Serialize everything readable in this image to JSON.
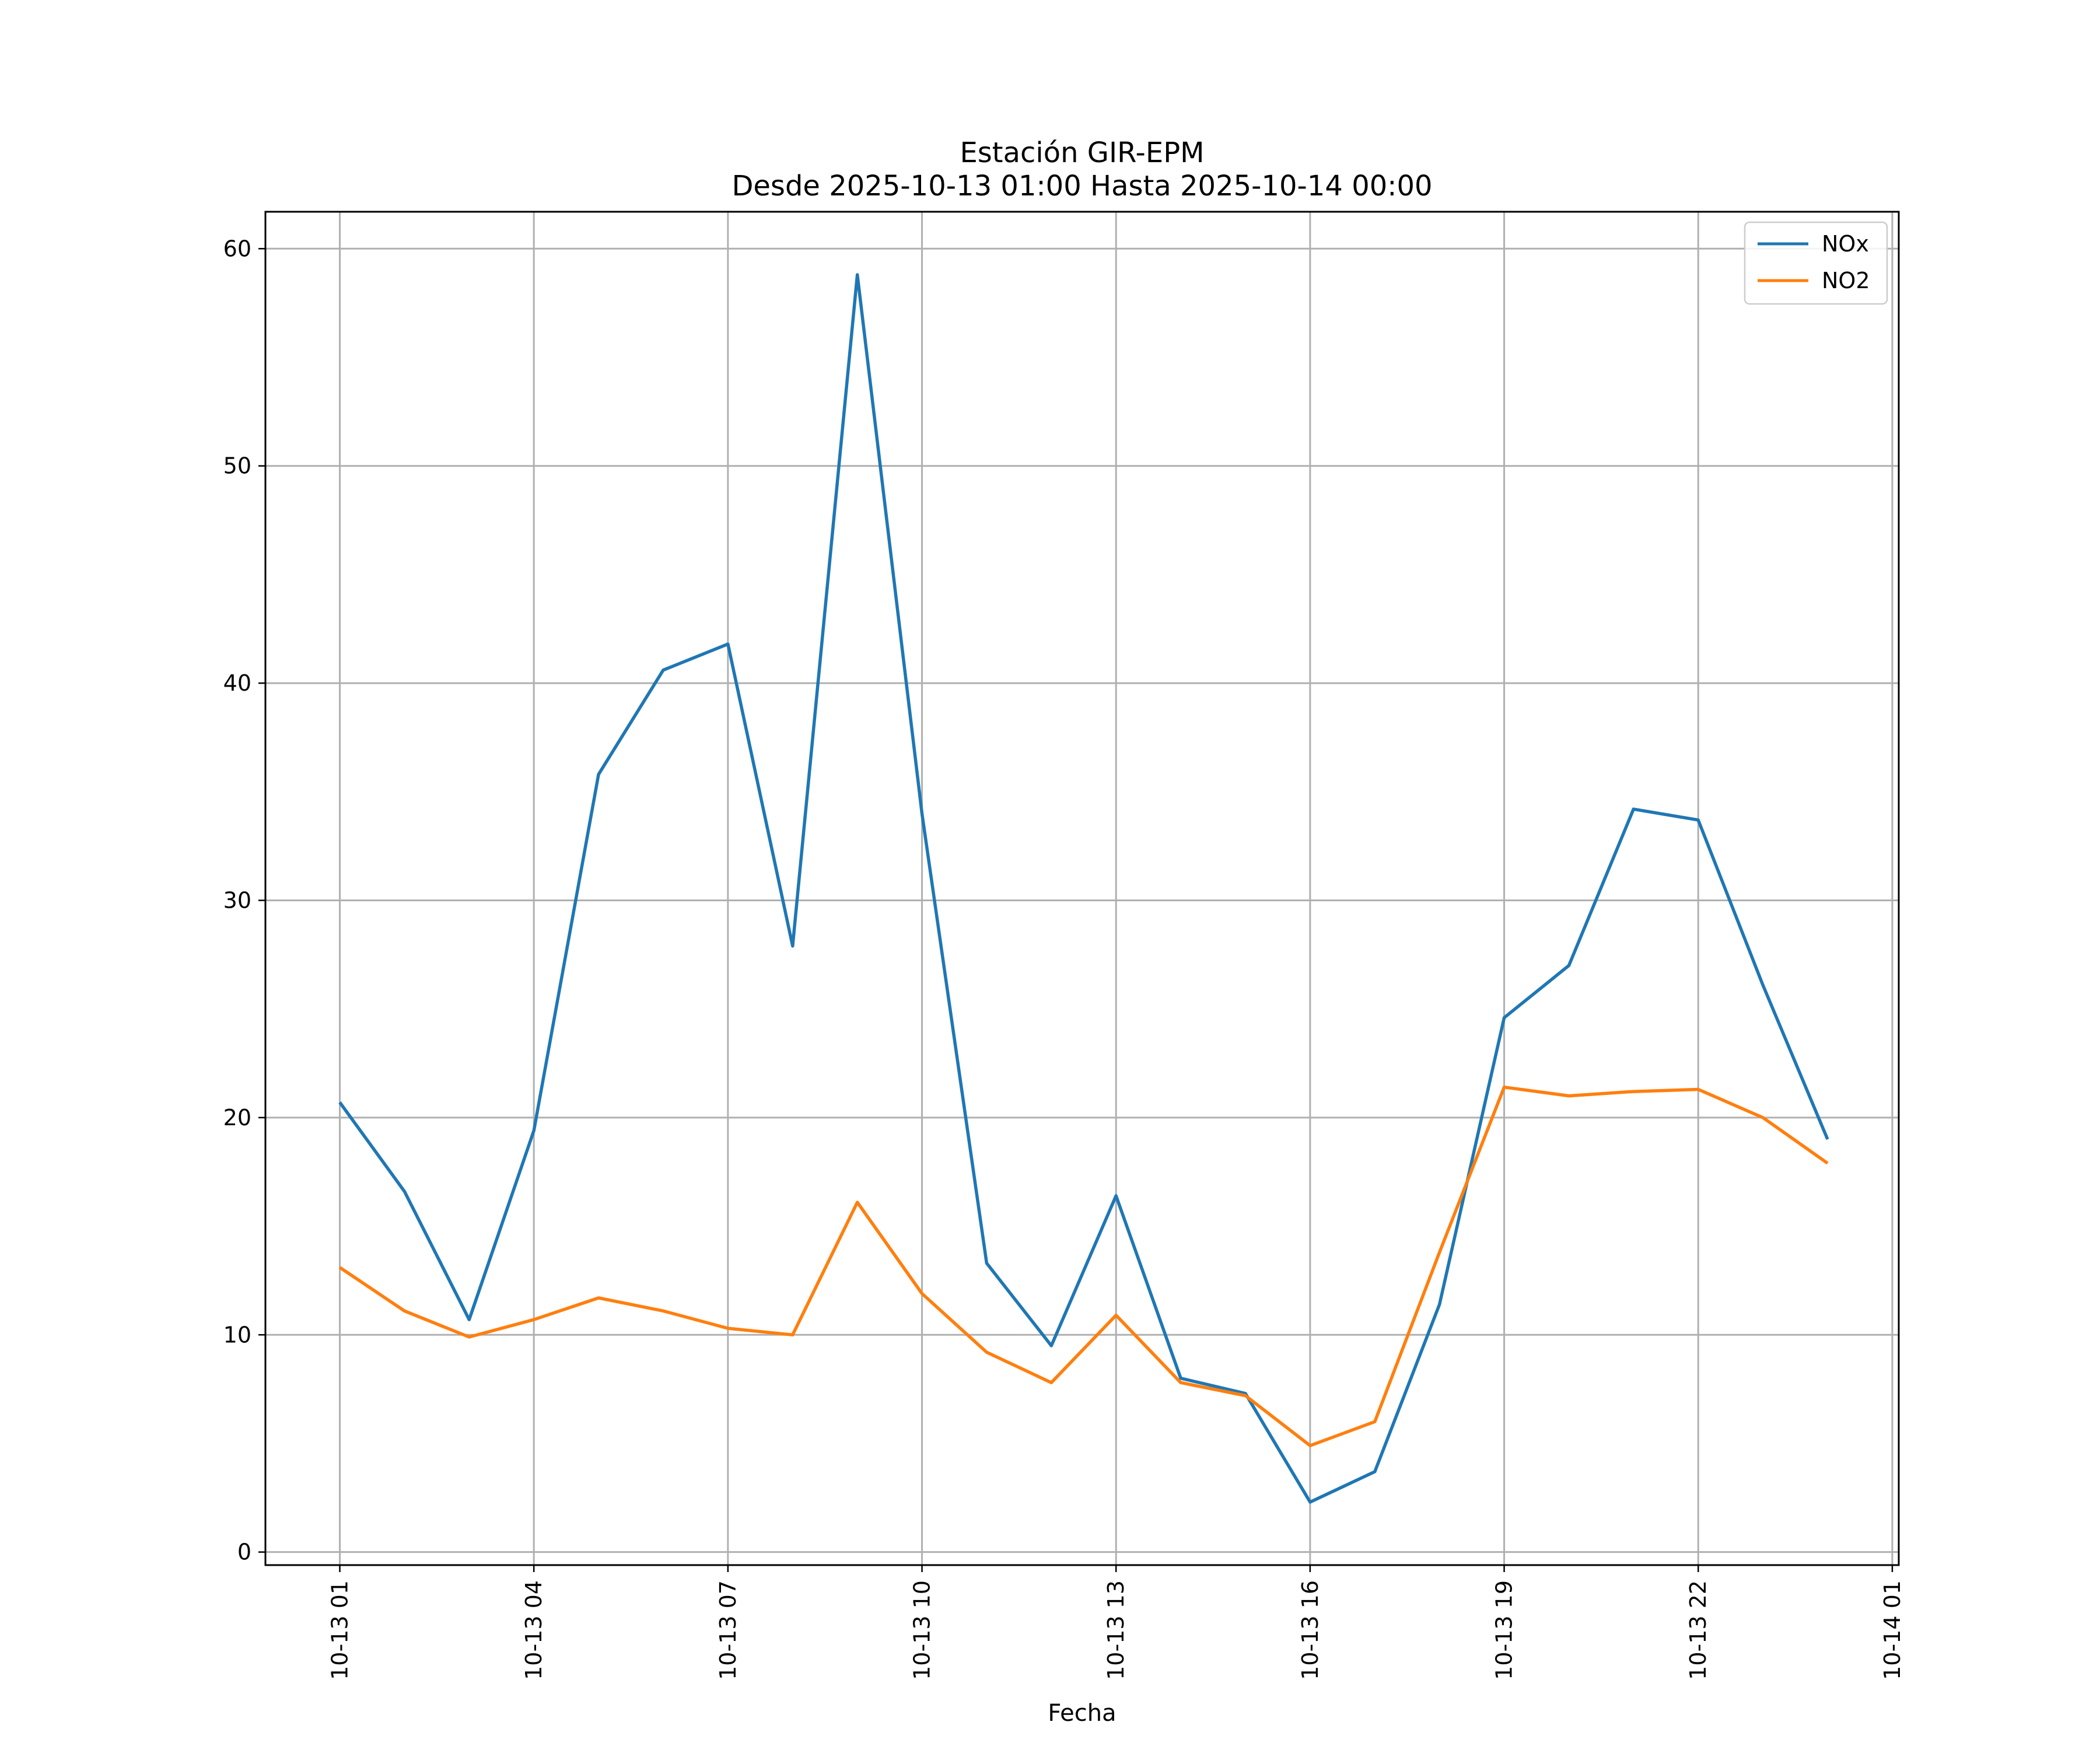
{
  "chart_data": {
    "type": "line",
    "title": [
      "Estación GIR-EPM",
      "Desde 2025-10-13 01:00 Hasta 2025-10-14 00:00"
    ],
    "xlabel": "Fecha",
    "ylabel": "",
    "x_hours": [
      1,
      2,
      3,
      4,
      5,
      6,
      7,
      8,
      9,
      10,
      11,
      12,
      13,
      14,
      15,
      16,
      17,
      18,
      19,
      20,
      21,
      22,
      23,
      24
    ],
    "series": [
      {
        "name": "NOx",
        "color": "#1f77b4",
        "values": [
          20.7,
          16.6,
          10.7,
          19.4,
          35.8,
          40.6,
          41.8,
          27.9,
          58.8,
          34.0,
          13.3,
          9.5,
          16.4,
          8.0,
          7.3,
          2.3,
          3.7,
          11.4,
          24.6,
          27.0,
          34.2,
          33.7,
          26.1,
          19.0
        ]
      },
      {
        "name": "NO2",
        "color": "#ff7f0e",
        "values": [
          13.1,
          11.1,
          9.9,
          10.7,
          11.7,
          11.1,
          10.3,
          10.0,
          16.1,
          11.9,
          9.2,
          7.8,
          10.9,
          7.8,
          7.2,
          4.9,
          6.0,
          13.8,
          21.4,
          21.0,
          21.2,
          21.3,
          20.0,
          17.9
        ]
      }
    ],
    "xticks": [
      {
        "hour": 1,
        "label": "10-13 01"
      },
      {
        "hour": 4,
        "label": "10-13 04"
      },
      {
        "hour": 7,
        "label": "10-13 07"
      },
      {
        "hour": 10,
        "label": "10-13 10"
      },
      {
        "hour": 13,
        "label": "10-13 13"
      },
      {
        "hour": 16,
        "label": "10-13 16"
      },
      {
        "hour": 19,
        "label": "10-13 19"
      },
      {
        "hour": 22,
        "label": "10-13 22"
      },
      {
        "hour": 25,
        "label": "10-14 01"
      }
    ],
    "yticks": [
      0,
      10,
      20,
      30,
      40,
      50,
      60
    ],
    "xlim": [
      -0.15,
      25.1
    ],
    "ylim": [
      -0.6,
      61.7
    ],
    "grid": true,
    "legend": "top-right"
  }
}
